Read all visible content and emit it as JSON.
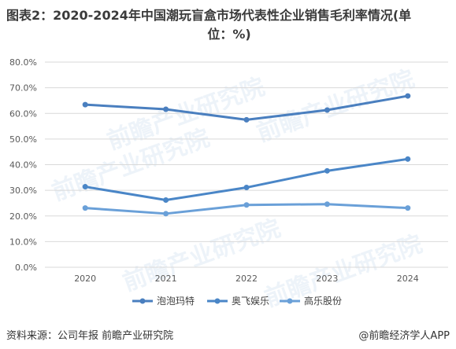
{
  "title_line1": "图表2：2020-2024年中国潮玩盲盒市场代表性企业销售毛利率情况(单",
  "title_line2": "位：%)",
  "source": "资料来源：公司年报 前瞻产业研究院",
  "credit": "@前瞻经济学人APP",
  "watermark": "前瞻产业研究院",
  "chart_data": {
    "type": "line",
    "x": [
      "2020",
      "2021",
      "2022",
      "2023",
      "2024"
    ],
    "y_ticks": [
      "0.0%",
      "10.0%",
      "20.0%",
      "30.0%",
      "40.0%",
      "50.0%",
      "60.0%",
      "70.0%",
      "80.0%"
    ],
    "ylim": [
      0,
      80
    ],
    "grid": true,
    "legend_position": "bottom",
    "series": [
      {
        "name": "泡泡玛特",
        "values": [
          63.4,
          61.6,
          57.5,
          61.3,
          66.8
        ],
        "color": "#4a7fbf"
      },
      {
        "name": "奥飞娱乐",
        "values": [
          31.4,
          26.2,
          31.1,
          37.6,
          42.2
        ],
        "color": "#4a86c7"
      },
      {
        "name": "高乐股份",
        "values": [
          23.1,
          20.9,
          24.3,
          24.6,
          23.1
        ],
        "color": "#6aa0d8"
      }
    ]
  }
}
